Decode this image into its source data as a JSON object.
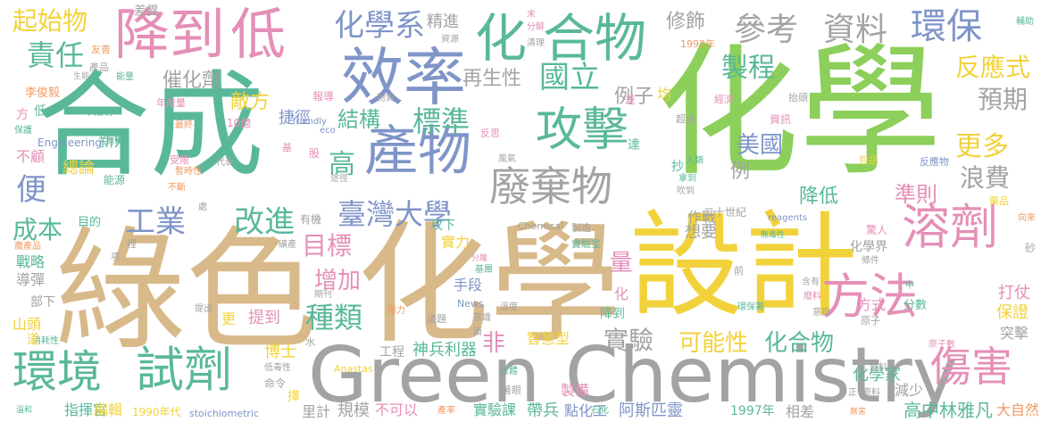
{
  "palette": {
    "green": "#8ccf5a",
    "tan": "#d8b98a",
    "teal": "#5ab89a",
    "gray": "#a3a3a3",
    "yellow": "#f2d23b",
    "pink": "#e58fb8",
    "blue": "#7f95c8",
    "orange": "#f29a63"
  },
  "words": [
    {
      "t": "化學",
      "c": "green"
    },
    {
      "t": "綠色",
      "c": "tan"
    },
    {
      "t": "化學",
      "c": "tan"
    },
    {
      "t": "合成",
      "c": "teal"
    },
    {
      "t": "設計",
      "c": "yellow"
    },
    {
      "t": "Green Chemistry",
      "c": "gray"
    },
    {
      "t": "效率",
      "c": "blue"
    },
    {
      "t": "降到",
      "c": "pink"
    },
    {
      "t": "低",
      "c": "pink"
    },
    {
      "t": "合物",
      "c": "teal"
    },
    {
      "t": "化",
      "c": "teal"
    },
    {
      "t": "參考",
      "c": "gray"
    },
    {
      "t": "資料",
      "c": "gray"
    },
    {
      "t": "環保",
      "c": "blue"
    },
    {
      "t": "產物",
      "c": "blue"
    },
    {
      "t": "攻擊",
      "c": "teal"
    },
    {
      "t": "廢棄物",
      "c": "gray"
    },
    {
      "t": "溶劑",
      "c": "pink"
    },
    {
      "t": "方法",
      "c": "pink"
    },
    {
      "t": "試劑",
      "c": "teal"
    },
    {
      "t": "環境",
      "c": "teal"
    },
    {
      "t": "傷害",
      "c": "pink"
    },
    {
      "t": "臺灣大學",
      "c": "blue"
    },
    {
      "t": "化學系",
      "c": "blue"
    },
    {
      "t": "責任",
      "c": "teal"
    },
    {
      "t": "起始物",
      "c": "yellow"
    },
    {
      "t": "標準",
      "c": "teal"
    },
    {
      "t": "國立",
      "c": "teal"
    },
    {
      "t": "製程",
      "c": "teal"
    },
    {
      "t": "反應式",
      "c": "yellow"
    },
    {
      "t": "預期",
      "c": "gray"
    },
    {
      "t": "更多",
      "c": "yellow"
    },
    {
      "t": "浪費",
      "c": "gray"
    },
    {
      "t": "美國",
      "c": "blue"
    },
    {
      "t": "高",
      "c": "teal"
    },
    {
      "t": "工業",
      "c": "blue"
    },
    {
      "t": "改進",
      "c": "teal"
    },
    {
      "t": "目標",
      "c": "pink"
    },
    {
      "t": "成本",
      "c": "teal"
    },
    {
      "t": "便",
      "c": "blue"
    },
    {
      "t": "增加",
      "c": "pink"
    },
    {
      "t": "種類",
      "c": "teal"
    },
    {
      "t": "實驗",
      "c": "gray"
    },
    {
      "t": "可能性",
      "c": "yellow"
    },
    {
      "t": "化合物",
      "c": "teal"
    },
    {
      "t": "準則",
      "c": "pink"
    },
    {
      "t": "降低",
      "c": "teal"
    },
    {
      "t": "結構",
      "c": "teal"
    },
    {
      "t": "再生性",
      "c": "gray"
    },
    {
      "t": "催化劑",
      "c": "gray"
    },
    {
      "t": "敵方",
      "c": "yellow"
    },
    {
      "t": "修飾",
      "c": "gray"
    },
    {
      "t": "精進",
      "c": "gray"
    },
    {
      "t": "差異",
      "c": "gray"
    },
    {
      "t": "新知",
      "c": "teal"
    },
    {
      "t": "總論",
      "c": "yellow"
    },
    {
      "t": "捷徑",
      "c": "blue"
    },
    {
      "t": "例子",
      "c": "gray"
    },
    {
      "t": "例",
      "c": "gray"
    },
    {
      "t": "量",
      "c": "pink"
    },
    {
      "t": "化學家",
      "c": "teal"
    },
    {
      "t": "化學界",
      "c": "gray"
    },
    {
      "t": "高中",
      "c": "teal"
    },
    {
      "t": "林雅凡",
      "c": "teal"
    },
    {
      "t": "大自然",
      "c": "orange"
    },
    {
      "t": "阿斯匹靈",
      "c": "blue"
    },
    {
      "t": "點化工",
      "c": "blue"
    },
    {
      "t": "帶兵",
      "c": "teal"
    },
    {
      "t": "實驗課",
      "c": "teal"
    },
    {
      "t": "神兵利器",
      "c": "teal"
    },
    {
      "t": "非",
      "c": "pink"
    },
    {
      "t": "博士",
      "c": "yellow"
    },
    {
      "t": "提到",
      "c": "pink"
    },
    {
      "t": "更",
      "c": "yellow"
    },
    {
      "t": "工程",
      "c": "gray"
    },
    {
      "t": "規模",
      "c": "gray"
    },
    {
      "t": "不可以",
      "c": "pink"
    },
    {
      "t": "里計",
      "c": "gray"
    },
    {
      "t": "指揮官",
      "c": "teal"
    },
    {
      "t": "編輯",
      "c": "yellow"
    },
    {
      "t": "1990年代",
      "c": "yellow"
    },
    {
      "t": "stoichiometric",
      "c": "blue"
    },
    {
      "t": "1997年",
      "c": "teal"
    },
    {
      "t": "相差",
      "c": "gray"
    },
    {
      "t": "減少",
      "c": "gray"
    },
    {
      "t": "突擊",
      "c": "gray"
    },
    {
      "t": "保證",
      "c": "yellow"
    },
    {
      "t": "打仗",
      "c": "pink"
    },
    {
      "t": "方式",
      "c": "pink"
    },
    {
      "t": "分數",
      "c": "teal"
    },
    {
      "t": "作戰",
      "c": "gray"
    },
    {
      "t": "二十世紀",
      "c": "gray"
    },
    {
      "t": "實力",
      "c": "yellow"
    },
    {
      "t": "手段",
      "c": "blue"
    },
    {
      "t": "攻下",
      "c": "teal"
    },
    {
      "t": "想要",
      "c": "gray"
    },
    {
      "t": "智慧型",
      "c": "yellow"
    },
    {
      "t": "降到",
      "c": "teal"
    },
    {
      "t": "戰略",
      "c": "teal"
    },
    {
      "t": "導彈",
      "c": "gray"
    },
    {
      "t": "部下",
      "c": "gray"
    },
    {
      "t": "山頭",
      "c": "yellow"
    },
    {
      "t": "不顧",
      "c": "pink"
    },
    {
      "t": "目的",
      "c": "teal"
    },
    {
      "t": "李俊毅",
      "c": "orange"
    },
    {
      "t": "Engineering",
      "c": "blue"
    },
    {
      "t": "Chemical",
      "c": "gray"
    },
    {
      "t": "reagents",
      "c": "blue"
    },
    {
      "t": "friendly",
      "c": "blue"
    },
    {
      "t": "Anastas",
      "c": "yellow"
    },
    {
      "t": "News",
      "c": "blue"
    },
    {
      "t": "eco",
      "c": "blue"
    },
    {
      "t": "10億",
      "c": "pink"
    },
    {
      "t": "資訊",
      "c": "pink"
    },
    {
      "t": "經濟",
      "c": "pink"
    },
    {
      "t": "抬頭",
      "c": "gray"
    },
    {
      "t": "超過",
      "c": "gray"
    },
    {
      "t": "報導",
      "c": "pink"
    },
    {
      "t": "物質",
      "c": "gray"
    },
    {
      "t": "年產量",
      "c": "pink"
    },
    {
      "t": "產品",
      "c": "gray"
    },
    {
      "t": "友善",
      "c": "orange"
    },
    {
      "t": "分解",
      "c": "pink"
    },
    {
      "t": "清理",
      "c": "gray"
    },
    {
      "t": "資源",
      "c": "gray"
    },
    {
      "t": "1993年",
      "c": "orange"
    },
    {
      "t": "輔助",
      "c": "teal"
    },
    {
      "t": "能量",
      "c": "teal"
    },
    {
      "t": "生能",
      "c": "gray"
    },
    {
      "t": "大部分",
      "c": "teal"
    },
    {
      "t": "最終",
      "c": "orange"
    },
    {
      "t": "保護",
      "c": "teal"
    },
    {
      "t": "消耗",
      "c": "teal"
    },
    {
      "t": "能源",
      "c": "teal"
    },
    {
      "t": "受限",
      "c": "pink"
    },
    {
      "t": "暫時性",
      "c": "orange"
    },
    {
      "t": "不斷",
      "c": "orange"
    },
    {
      "t": "代表",
      "c": "gray"
    },
    {
      "t": "途徑",
      "c": "gray"
    },
    {
      "t": "股",
      "c": "pink"
    },
    {
      "t": "有機",
      "c": "gray"
    },
    {
      "t": "風氣",
      "c": "gray"
    },
    {
      "t": "人類",
      "c": "teal"
    },
    {
      "t": "拿到",
      "c": "teal"
    },
    {
      "t": "吹到",
      "c": "gray"
    },
    {
      "t": "包括",
      "c": "yellow"
    },
    {
      "t": "反應物",
      "c": "blue"
    },
    {
      "t": "藥品",
      "c": "yellow"
    },
    {
      "t": "向來",
      "c": "orange"
    },
    {
      "t": "驚人",
      "c": "pink"
    },
    {
      "t": "條件",
      "c": "gray"
    },
    {
      "t": "無毒性",
      "c": "teal"
    },
    {
      "t": "含有",
      "c": "gray"
    },
    {
      "t": "廢料",
      "c": "pink"
    },
    {
      "t": "意指",
      "c": "gray"
    },
    {
      "t": "環保署",
      "c": "teal"
    },
    {
      "t": "原子",
      "c": "gray"
    },
    {
      "t": "原子數",
      "c": "pink"
    },
    {
      "t": "燃料",
      "c": "gray"
    },
    {
      "t": "原料",
      "c": "gray"
    },
    {
      "t": "無害",
      "c": "orange"
    },
    {
      "t": "正",
      "c": "gray"
    },
    {
      "t": "著眼",
      "c": "gray"
    },
    {
      "t": "人體",
      "c": "teal"
    },
    {
      "t": "產率",
      "c": "orange"
    },
    {
      "t": "石化",
      "c": "teal"
    },
    {
      "t": "製備",
      "c": "pink"
    },
    {
      "t": "議題",
      "c": "gray"
    },
    {
      "t": "意識",
      "c": "gray"
    },
    {
      "t": "溫度",
      "c": "gray"
    },
    {
      "t": "壓力",
      "c": "orange"
    },
    {
      "t": "期刊",
      "c": "gray"
    },
    {
      "t": "提出",
      "c": "gray"
    },
    {
      "t": "消耗性",
      "c": "teal"
    },
    {
      "t": "低毒性",
      "c": "gray"
    },
    {
      "t": "命令",
      "c": "gray"
    },
    {
      "t": "擇",
      "c": "yellow"
    },
    {
      "t": "溫和",
      "c": "teal"
    },
    {
      "t": "農產品",
      "c": "orange"
    },
    {
      "t": "礦產",
      "c": "gray"
    },
    {
      "t": "裡",
      "c": "gray"
    },
    {
      "t": "處",
      "c": "gray"
    },
    {
      "t": "項",
      "c": "gray"
    },
    {
      "t": "基團",
      "c": "teal"
    },
    {
      "t": "分離",
      "c": "pink"
    },
    {
      "t": "製造",
      "c": "gray"
    },
    {
      "t": "實驗室",
      "c": "teal"
    },
    {
      "t": "化",
      "c": "pink"
    },
    {
      "t": "抄",
      "c": "teal"
    },
    {
      "t": "達",
      "c": "teal"
    },
    {
      "t": "均",
      "c": "yellow"
    },
    {
      "t": "差",
      "c": "pink"
    },
    {
      "t": "末",
      "c": "pink"
    },
    {
      "t": "前",
      "c": "gray"
    },
    {
      "t": "中",
      "c": "teal"
    },
    {
      "t": "砂",
      "c": "gray"
    },
    {
      "t": "基",
      "c": "pink"
    },
    {
      "t": "反思",
      "c": "pink"
    },
    {
      "t": "方",
      "c": "pink"
    },
    {
      "t": "低",
      "c": "teal"
    },
    {
      "t": "道",
      "c": "yellow"
    },
    {
      "t": "水",
      "c": "gray"
    },
    {
      "t": "面",
      "c": "gray"
    }
  ]
}
